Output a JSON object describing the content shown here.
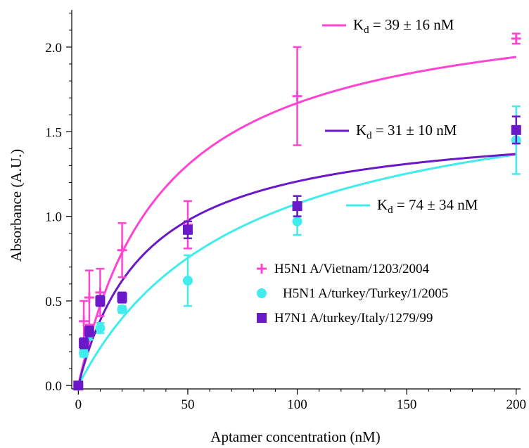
{
  "chart_data": {
    "type": "scatter",
    "xlabel": "Aptamer concentration (nM)",
    "ylabel": "Absorbance (A.U.)",
    "xlim": [
      -3,
      202
    ],
    "ylim": [
      -0.02,
      2.22
    ],
    "xticks": [
      0,
      50,
      100,
      150,
      200
    ],
    "xtick_labels": [
      "0",
      "50",
      "100",
      "150",
      "200"
    ],
    "yticks": [
      0.0,
      0.5,
      1.0,
      1.5,
      2.0
    ],
    "ytick_labels": [
      "0.0",
      "0.5",
      "1.0",
      "1.5",
      "2.0"
    ],
    "grid": false,
    "legend_position": "lower-right",
    "series": [
      {
        "name": "H5N1 A/Vietnam/1203/2004",
        "color": "#ff44d4",
        "marker": "plus",
        "kd_label": "K",
        "kd_sub": "d",
        "kd_value": " = 39 ± 16 nM",
        "fit": {
          "bmax": 2.32,
          "kd": 39
        },
        "points": [
          {
            "x": 0,
            "y": 0.0,
            "err": 0.0
          },
          {
            "x": 2.5,
            "y": 0.38,
            "err": 0.12
          },
          {
            "x": 5,
            "y": 0.52,
            "err": 0.16
          },
          {
            "x": 10,
            "y": 0.55,
            "err": 0.14
          },
          {
            "x": 20,
            "y": 0.8,
            "err": 0.16
          },
          {
            "x": 50,
            "y": 0.95,
            "err": 0.14
          },
          {
            "x": 100,
            "y": 1.71,
            "err": 0.29
          },
          {
            "x": 200,
            "y": 2.05,
            "err": 0.03
          }
        ]
      },
      {
        "name": "H5N1 A/turkey/Turkey/1/2005",
        "color": "#40ecec",
        "marker": "circle",
        "kd_label": "K",
        "kd_sub": "d",
        "kd_value": " = 74 ± 34 nM",
        "fit": {
          "bmax": 1.87,
          "kd": 74
        },
        "points": [
          {
            "x": 0,
            "y": 0.0,
            "err": 0.0
          },
          {
            "x": 2.5,
            "y": 0.19,
            "err": 0.02
          },
          {
            "x": 5,
            "y": 0.3,
            "err": 0.03
          },
          {
            "x": 10,
            "y": 0.34,
            "err": 0.03
          },
          {
            "x": 20,
            "y": 0.45,
            "err": 0.02
          },
          {
            "x": 50,
            "y": 0.62,
            "err": 0.15
          },
          {
            "x": 100,
            "y": 0.97,
            "err": 0.08
          },
          {
            "x": 200,
            "y": 1.45,
            "err": 0.2
          }
        ]
      },
      {
        "name": "H7N1 A/turkey/Italy/1279/99",
        "color": "#6a18c8",
        "marker": "square",
        "kd_label": "K",
        "kd_sub": "d",
        "kd_value": " = 31 ± 10 nM",
        "fit": {
          "bmax": 1.58,
          "kd": 31
        },
        "points": [
          {
            "x": 0,
            "y": 0.0,
            "err": 0.0
          },
          {
            "x": 2.5,
            "y": 0.25,
            "err": 0.03
          },
          {
            "x": 5,
            "y": 0.32,
            "err": 0.03
          },
          {
            "x": 10,
            "y": 0.5,
            "err": 0.03
          },
          {
            "x": 20,
            "y": 0.52,
            "err": 0.03
          },
          {
            "x": 50,
            "y": 0.92,
            "err": 0.05
          },
          {
            "x": 100,
            "y": 1.06,
            "err": 0.06
          },
          {
            "x": 200,
            "y": 1.51,
            "err": 0.08
          }
        ]
      }
    ]
  }
}
